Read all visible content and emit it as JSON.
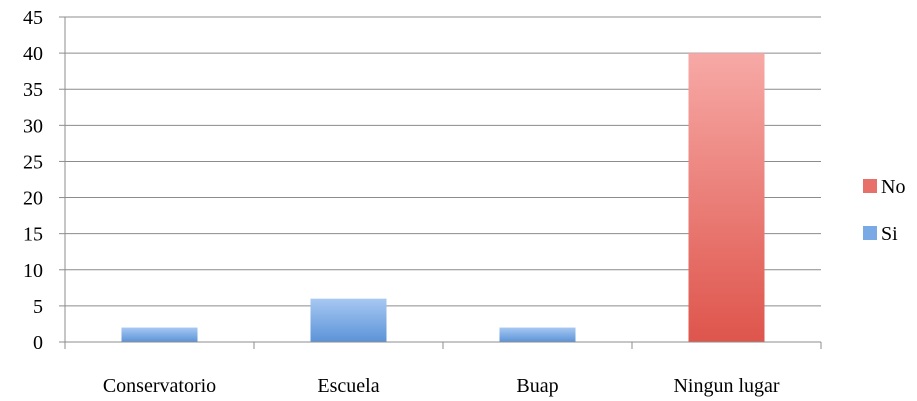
{
  "chart_data": {
    "type": "bar",
    "categories": [
      "Conservatorio",
      "Escuela",
      "Buap",
      "Ningun lugar"
    ],
    "series": [
      {
        "name": "Si",
        "values": [
          2,
          6,
          2,
          0
        ],
        "color_top": "#A7C8F2",
        "color_bottom": "#5B93D8"
      },
      {
        "name": "No",
        "values": [
          0,
          0,
          0,
          40
        ],
        "color_top": "#F7A9A6",
        "color_bottom": "#DE554C"
      }
    ],
    "ylim": [
      0,
      45
    ],
    "yticks": [
      0,
      5,
      10,
      15,
      20,
      25,
      30,
      35,
      40,
      45
    ],
    "ytick_labels": [
      "0",
      "5",
      "10",
      "15",
      "20",
      "25",
      "30",
      "35",
      "40",
      "45"
    ],
    "grid": true,
    "legend_position": "right",
    "legend": [
      {
        "label": "No",
        "color": "#E8706A"
      },
      {
        "label": "Si",
        "color": "#7AAAE6"
      }
    ],
    "title": "",
    "xlabel": "",
    "ylabel": ""
  }
}
